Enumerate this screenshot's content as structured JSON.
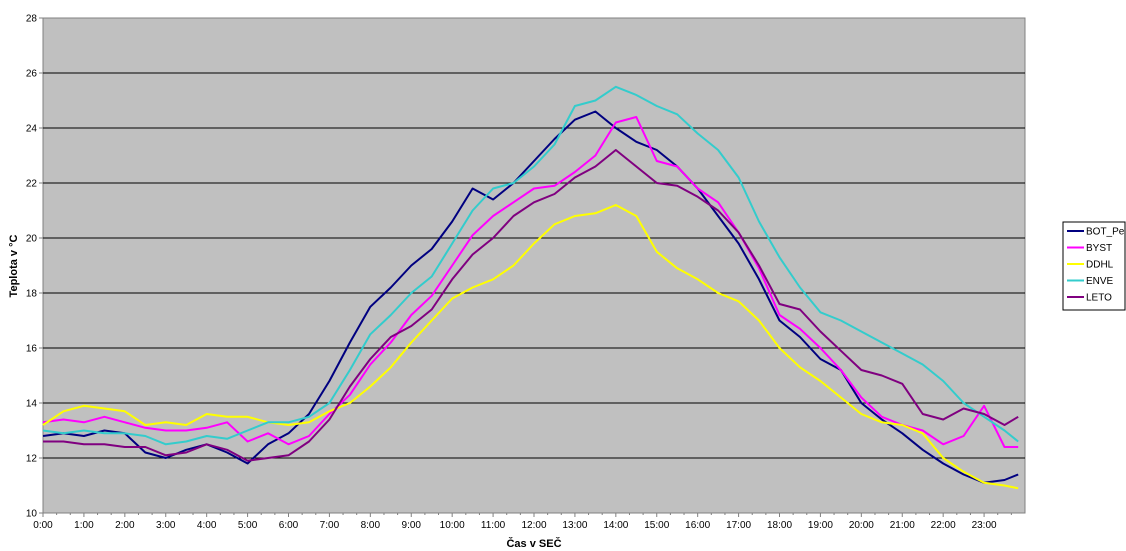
{
  "chart_data": {
    "type": "line",
    "title": "",
    "xlabel": "Čas v SEČ",
    "ylabel": "Teplota v °C",
    "xlim": [
      "0:00",
      "24:00"
    ],
    "ylim": [
      10,
      28
    ],
    "y_ticks": [
      10,
      12,
      14,
      16,
      18,
      20,
      22,
      24,
      26,
      28
    ],
    "x_tick_labels": [
      "0:00",
      "1:00",
      "2:00",
      "3:00",
      "4:00",
      "5:00",
      "6:00",
      "7:00",
      "8:00",
      "9:00",
      "10:00",
      "11:00",
      "12:00",
      "13:00",
      "14:00",
      "15:00",
      "16:00",
      "17:00",
      "18:00",
      "19:00",
      "20:00",
      "21:00",
      "22:00",
      "23:00"
    ],
    "grid": "horizontal",
    "legend": "right",
    "plot_background": "#c0c0c0",
    "series": [
      {
        "name": "BOT_Pe",
        "color": "#000080",
        "points": [
          [
            "0:00",
            12.8
          ],
          [
            "0:30",
            12.9
          ],
          [
            "1:00",
            12.8
          ],
          [
            "1:30",
            13.0
          ],
          [
            "2:00",
            12.9
          ],
          [
            "2:30",
            12.2
          ],
          [
            "3:00",
            12.0
          ],
          [
            "3:30",
            12.3
          ],
          [
            "4:00",
            12.5
          ],
          [
            "4:30",
            12.2
          ],
          [
            "5:00",
            11.8
          ],
          [
            "5:30",
            12.5
          ],
          [
            "6:00",
            12.9
          ],
          [
            "6:30",
            13.6
          ],
          [
            "7:00",
            14.8
          ],
          [
            "7:30",
            16.2
          ],
          [
            "8:00",
            17.5
          ],
          [
            "8:30",
            18.2
          ],
          [
            "9:00",
            19.0
          ],
          [
            "9:30",
            19.6
          ],
          [
            "10:00",
            20.6
          ],
          [
            "10:30",
            21.8
          ],
          [
            "11:00",
            21.4
          ],
          [
            "11:30",
            22.0
          ],
          [
            "12:00",
            22.8
          ],
          [
            "12:30",
            23.6
          ],
          [
            "13:00",
            24.3
          ],
          [
            "13:30",
            24.6
          ],
          [
            "14:00",
            24.0
          ],
          [
            "14:30",
            23.5
          ],
          [
            "15:00",
            23.2
          ],
          [
            "15:30",
            22.6
          ],
          [
            "16:00",
            21.8
          ],
          [
            "16:30",
            20.8
          ],
          [
            "17:00",
            19.8
          ],
          [
            "17:30",
            18.5
          ],
          [
            "18:00",
            17.0
          ],
          [
            "18:30",
            16.4
          ],
          [
            "19:00",
            15.6
          ],
          [
            "19:30",
            15.2
          ],
          [
            "20:00",
            14.0
          ],
          [
            "20:30",
            13.4
          ],
          [
            "21:00",
            12.9
          ],
          [
            "21:30",
            12.3
          ],
          [
            "22:00",
            11.8
          ],
          [
            "22:30",
            11.4
          ],
          [
            "23:00",
            11.1
          ],
          [
            "23:30",
            11.2
          ],
          [
            "23:50",
            11.4
          ]
        ]
      },
      {
        "name": "BYST",
        "color": "#ff00ff",
        "points": [
          [
            "0:00",
            13.3
          ],
          [
            "0:30",
            13.4
          ],
          [
            "1:00",
            13.3
          ],
          [
            "1:30",
            13.5
          ],
          [
            "2:00",
            13.3
          ],
          [
            "2:30",
            13.1
          ],
          [
            "3:00",
            13.0
          ],
          [
            "3:30",
            13.0
          ],
          [
            "4:00",
            13.1
          ],
          [
            "4:30",
            13.3
          ],
          [
            "5:00",
            12.6
          ],
          [
            "5:30",
            12.9
          ],
          [
            "6:00",
            12.5
          ],
          [
            "6:30",
            12.8
          ],
          [
            "7:00",
            13.6
          ],
          [
            "7:30",
            14.3
          ],
          [
            "8:00",
            15.4
          ],
          [
            "8:30",
            16.2
          ],
          [
            "9:00",
            17.2
          ],
          [
            "9:30",
            17.9
          ],
          [
            "10:00",
            19.0
          ],
          [
            "10:30",
            20.1
          ],
          [
            "11:00",
            20.8
          ],
          [
            "11:30",
            21.3
          ],
          [
            "12:00",
            21.8
          ],
          [
            "12:30",
            21.9
          ],
          [
            "13:00",
            22.4
          ],
          [
            "13:30",
            23.0
          ],
          [
            "14:00",
            24.2
          ],
          [
            "14:30",
            24.4
          ],
          [
            "15:00",
            22.8
          ],
          [
            "15:30",
            22.6
          ],
          [
            "16:00",
            21.8
          ],
          [
            "16:30",
            21.3
          ],
          [
            "17:00",
            20.2
          ],
          [
            "17:30",
            18.9
          ],
          [
            "18:00",
            17.2
          ],
          [
            "18:30",
            16.7
          ],
          [
            "19:00",
            16.0
          ],
          [
            "19:30",
            15.2
          ],
          [
            "20:00",
            14.2
          ],
          [
            "20:30",
            13.5
          ],
          [
            "21:00",
            13.2
          ],
          [
            "21:30",
            13.0
          ],
          [
            "22:00",
            12.5
          ],
          [
            "22:30",
            12.8
          ],
          [
            "23:00",
            13.9
          ],
          [
            "23:30",
            12.4
          ],
          [
            "23:50",
            12.4
          ]
        ]
      },
      {
        "name": "DDHL",
        "color": "#ffff00",
        "points": [
          [
            "0:00",
            13.2
          ],
          [
            "0:30",
            13.7
          ],
          [
            "1:00",
            13.9
          ],
          [
            "1:30",
            13.8
          ],
          [
            "2:00",
            13.7
          ],
          [
            "2:30",
            13.2
          ],
          [
            "3:00",
            13.3
          ],
          [
            "3:30",
            13.2
          ],
          [
            "4:00",
            13.6
          ],
          [
            "4:30",
            13.5
          ],
          [
            "5:00",
            13.5
          ],
          [
            "5:30",
            13.3
          ],
          [
            "6:00",
            13.2
          ],
          [
            "6:30",
            13.3
          ],
          [
            "7:00",
            13.7
          ],
          [
            "7:30",
            14.0
          ],
          [
            "8:00",
            14.6
          ],
          [
            "8:30",
            15.3
          ],
          [
            "9:00",
            16.2
          ],
          [
            "9:30",
            17.0
          ],
          [
            "10:00",
            17.8
          ],
          [
            "10:30",
            18.2
          ],
          [
            "11:00",
            18.5
          ],
          [
            "11:30",
            19.0
          ],
          [
            "12:00",
            19.8
          ],
          [
            "12:30",
            20.5
          ],
          [
            "13:00",
            20.8
          ],
          [
            "13:30",
            20.9
          ],
          [
            "14:00",
            21.2
          ],
          [
            "14:30",
            20.8
          ],
          [
            "15:00",
            19.5
          ],
          [
            "15:30",
            18.9
          ],
          [
            "16:00",
            18.5
          ],
          [
            "16:30",
            18.0
          ],
          [
            "17:00",
            17.7
          ],
          [
            "17:30",
            17.0
          ],
          [
            "18:00",
            16.0
          ],
          [
            "18:30",
            15.3
          ],
          [
            "19:00",
            14.8
          ],
          [
            "19:30",
            14.2
          ],
          [
            "20:00",
            13.6
          ],
          [
            "20:30",
            13.3
          ],
          [
            "21:00",
            13.2
          ],
          [
            "21:30",
            12.9
          ],
          [
            "22:00",
            12.0
          ],
          [
            "22:30",
            11.5
          ],
          [
            "23:00",
            11.1
          ],
          [
            "23:30",
            11.0
          ],
          [
            "23:50",
            10.9
          ]
        ]
      },
      {
        "name": "ENVE",
        "color": "#33cccc",
        "points": [
          [
            "0:00",
            13.0
          ],
          [
            "0:30",
            12.9
          ],
          [
            "1:00",
            13.0
          ],
          [
            "1:30",
            12.9
          ],
          [
            "2:00",
            12.9
          ],
          [
            "2:30",
            12.8
          ],
          [
            "3:00",
            12.5
          ],
          [
            "3:30",
            12.6
          ],
          [
            "4:00",
            12.8
          ],
          [
            "4:30",
            12.7
          ],
          [
            "5:00",
            13.0
          ],
          [
            "5:30",
            13.3
          ],
          [
            "6:00",
            13.3
          ],
          [
            "6:30",
            13.5
          ],
          [
            "7:00",
            14.0
          ],
          [
            "7:30",
            15.2
          ],
          [
            "8:00",
            16.5
          ],
          [
            "8:30",
            17.2
          ],
          [
            "9:00",
            18.0
          ],
          [
            "9:30",
            18.6
          ],
          [
            "10:00",
            19.8
          ],
          [
            "10:30",
            21.0
          ],
          [
            "11:00",
            21.8
          ],
          [
            "11:30",
            22.0
          ],
          [
            "12:00",
            22.6
          ],
          [
            "12:30",
            23.4
          ],
          [
            "13:00",
            24.8
          ],
          [
            "13:30",
            25.0
          ],
          [
            "14:00",
            25.5
          ],
          [
            "14:30",
            25.2
          ],
          [
            "15:00",
            24.8
          ],
          [
            "15:30",
            24.5
          ],
          [
            "16:00",
            23.8
          ],
          [
            "16:30",
            23.2
          ],
          [
            "17:00",
            22.2
          ],
          [
            "17:30",
            20.6
          ],
          [
            "18:00",
            19.3
          ],
          [
            "18:30",
            18.2
          ],
          [
            "19:00",
            17.3
          ],
          [
            "19:30",
            17.0
          ],
          [
            "20:00",
            16.6
          ],
          [
            "20:30",
            16.2
          ],
          [
            "21:00",
            15.8
          ],
          [
            "21:30",
            15.4
          ],
          [
            "22:00",
            14.8
          ],
          [
            "22:30",
            14.0
          ],
          [
            "23:00",
            13.5
          ],
          [
            "23:30",
            13.0
          ],
          [
            "23:50",
            12.6
          ]
        ]
      },
      {
        "name": "LETO",
        "color": "#800080",
        "points": [
          [
            "0:00",
            12.6
          ],
          [
            "0:30",
            12.6
          ],
          [
            "1:00",
            12.5
          ],
          [
            "1:30",
            12.5
          ],
          [
            "2:00",
            12.4
          ],
          [
            "2:30",
            12.4
          ],
          [
            "3:00",
            12.1
          ],
          [
            "3:30",
            12.2
          ],
          [
            "4:00",
            12.5
          ],
          [
            "4:30",
            12.3
          ],
          [
            "5:00",
            11.9
          ],
          [
            "5:30",
            12.0
          ],
          [
            "6:00",
            12.1
          ],
          [
            "6:30",
            12.6
          ],
          [
            "7:00",
            13.4
          ],
          [
            "7:30",
            14.6
          ],
          [
            "8:00",
            15.6
          ],
          [
            "8:30",
            16.4
          ],
          [
            "9:00",
            16.8
          ],
          [
            "9:30",
            17.4
          ],
          [
            "10:00",
            18.5
          ],
          [
            "10:30",
            19.4
          ],
          [
            "11:00",
            20.0
          ],
          [
            "11:30",
            20.8
          ],
          [
            "12:00",
            21.3
          ],
          [
            "12:30",
            21.6
          ],
          [
            "13:00",
            22.2
          ],
          [
            "13:30",
            22.6
          ],
          [
            "14:00",
            23.2
          ],
          [
            "14:30",
            22.6
          ],
          [
            "15:00",
            22.0
          ],
          [
            "15:30",
            21.9
          ],
          [
            "16:00",
            21.5
          ],
          [
            "16:30",
            21.0
          ],
          [
            "17:00",
            20.2
          ],
          [
            "17:30",
            19.0
          ],
          [
            "18:00",
            17.6
          ],
          [
            "18:30",
            17.4
          ],
          [
            "19:00",
            16.6
          ],
          [
            "19:30",
            15.9
          ],
          [
            "20:00",
            15.2
          ],
          [
            "20:30",
            15.0
          ],
          [
            "21:00",
            14.7
          ],
          [
            "21:30",
            13.6
          ],
          [
            "22:00",
            13.4
          ],
          [
            "22:30",
            13.8
          ],
          [
            "23:00",
            13.6
          ],
          [
            "23:30",
            13.2
          ],
          [
            "23:50",
            13.5
          ]
        ]
      }
    ]
  }
}
